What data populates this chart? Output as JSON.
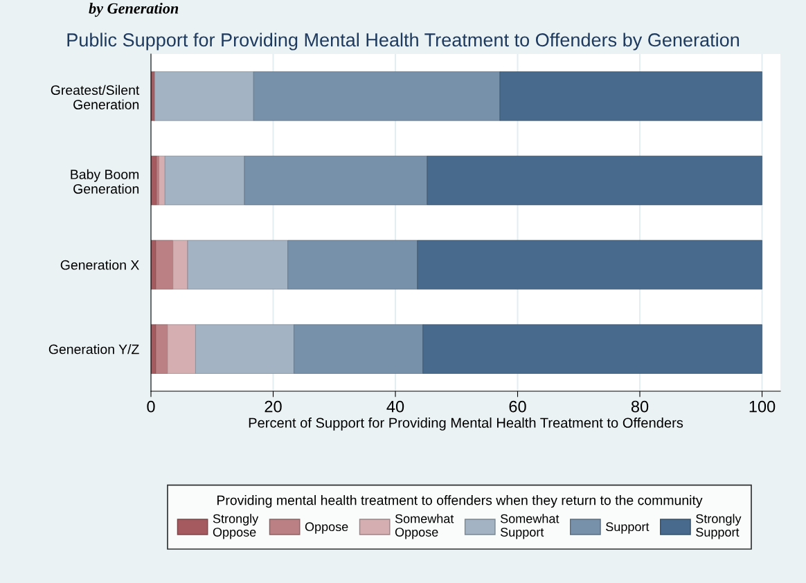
{
  "chart_data": {
    "type": "bar",
    "orientation": "horizontal",
    "stacked": true,
    "title": "Public Support for Providing Mental Health Treatment to Offenders by Generation",
    "xlabel": "Percent of Support for Providing Mental Health Treatment to Offenders",
    "legend_title": "Providing mental health treatment to offenders when they return to the community",
    "annotations": [
      "by Generation"
    ],
    "categories": [
      "Greatest/Silent\nGeneration",
      "Baby Boom\nGeneration",
      "Generation X",
      "Generation Y/Z"
    ],
    "series": [
      {
        "name": "Strongly\nOppose",
        "color": "#a45a5e",
        "values": [
          0.6,
          0.9,
          0.8,
          0.8
        ]
      },
      {
        "name": "Oppose",
        "color": "#bb8083",
        "values": [
          0,
          0.4,
          2.8,
          1.9
        ]
      },
      {
        "name": "Somewhat\nOppose",
        "color": "#d4aeb1",
        "values": [
          0,
          1.0,
          2.4,
          4.6
        ]
      },
      {
        "name": "Somewhat\nSupport",
        "color": "#a3b3c3",
        "values": [
          16.2,
          13.0,
          16.4,
          16.1
        ]
      },
      {
        "name": "Support",
        "color": "#7791aa",
        "values": [
          40.3,
          29.9,
          21.2,
          21.1
        ]
      },
      {
        "name": "Strongly\nSupport",
        "color": "#476a8d",
        "values": [
          42.9,
          54.8,
          56.4,
          55.5
        ]
      }
    ],
    "xlim": [
      0,
      103
    ],
    "xticks": [
      0,
      20,
      40,
      60,
      80,
      100
    ],
    "grid": "x",
    "legend": "bottom"
  }
}
